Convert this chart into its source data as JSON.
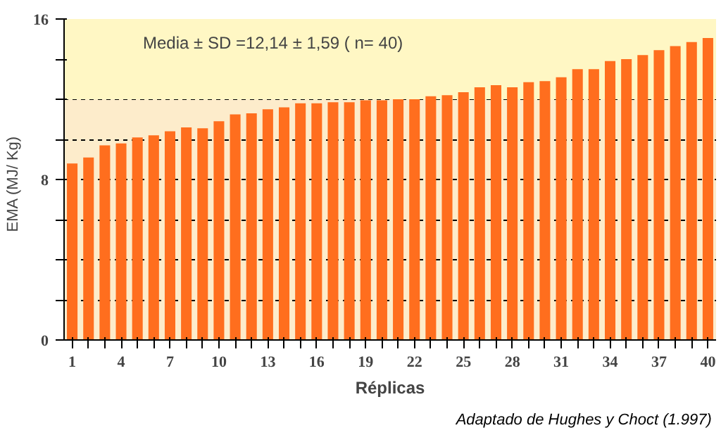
{
  "chart_data": {
    "type": "bar",
    "xlabel": "Réplicas",
    "ylabel": "EMA   (MJ/ Kg)",
    "categories": [
      "1",
      null,
      null,
      "4",
      null,
      null,
      "7",
      null,
      null,
      "10",
      null,
      null,
      "13",
      null,
      null,
      "16",
      null,
      null,
      "19",
      null,
      null,
      "22",
      null,
      null,
      "25",
      null,
      null,
      "28",
      null,
      null,
      "31",
      null,
      null,
      "34",
      null,
      null,
      "37",
      null,
      null,
      "40"
    ],
    "values": [
      8.8,
      9.1,
      9.7,
      9.8,
      10.1,
      10.2,
      10.4,
      10.6,
      10.55,
      10.9,
      11.25,
      11.3,
      11.5,
      11.6,
      11.8,
      11.8,
      11.85,
      11.85,
      11.95,
      11.95,
      12.0,
      12.0,
      12.15,
      12.2,
      12.35,
      12.6,
      12.7,
      12.6,
      12.85,
      12.9,
      13.1,
      13.5,
      13.5,
      13.9,
      14.0,
      14.2,
      14.45,
      14.65,
      14.85,
      15.05
    ],
    "color": "#ff6e1e",
    "ylim": [
      0,
      16
    ],
    "yticks": [
      0,
      {
        "value": 2,
        "label": null
      },
      {
        "value": 4,
        "label": null
      },
      {
        "value": 6,
        "label": null
      },
      8,
      {
        "value": 10,
        "label": null
      },
      {
        "value": 12,
        "label": null
      },
      {
        "value": 14,
        "label": null
      },
      16
    ],
    "grid": "y",
    "bands": [
      {
        "axis": "y",
        "from": 12,
        "to": 16,
        "color": "#fff7c4"
      }
    ],
    "annotations": [
      "Media ± SD =12,14 ± 1,59 ( n= 40)",
      "Adaptado de Hughes y Choct  (1.997)"
    ]
  }
}
